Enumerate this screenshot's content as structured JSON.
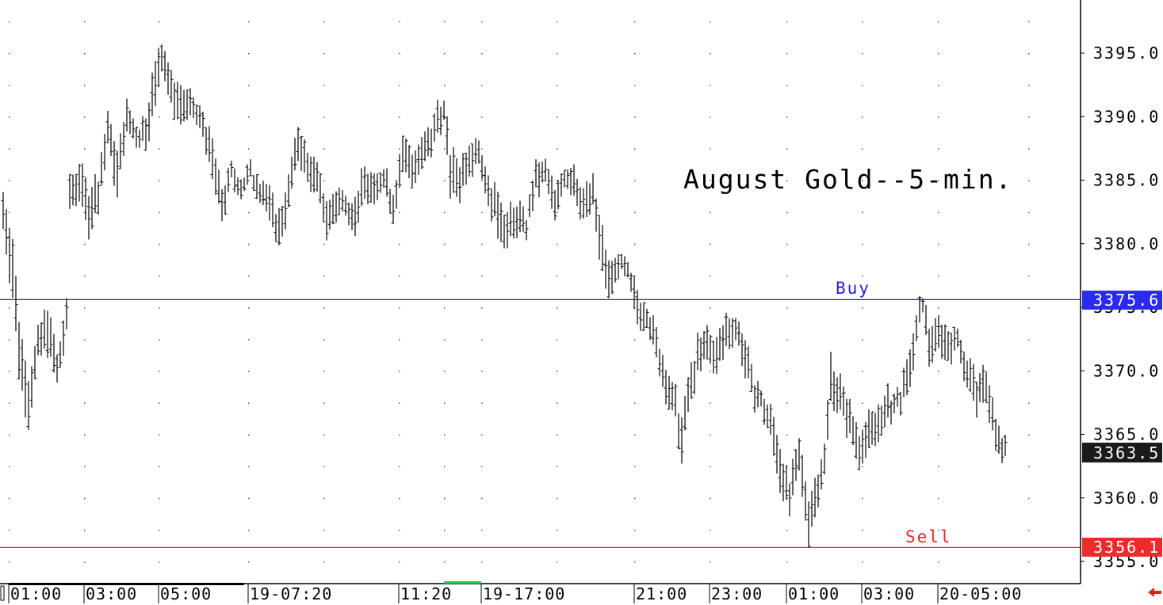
{
  "chart_data": {
    "type": "bar",
    "title": "August Gold--5-min.",
    "xlabel": "",
    "ylabel": "",
    "ylim": [
      3353.5,
      3400.0
    ],
    "y_ticks": [
      "3395.0",
      "3390.0",
      "3385.0",
      "3380.0",
      "3375.0",
      "3370.0",
      "3365.0",
      "3360.0",
      "3355.0"
    ],
    "x_ticks": [
      "01:00",
      "03:00",
      "05:00",
      "19-07:20",
      "11:20",
      "19-17:00",
      "21:00",
      "23:00",
      "01:00",
      "03:00",
      "20-05:00"
    ],
    "grid": true,
    "levels": [
      {
        "name": "Buy",
        "value": 3375.6,
        "label": "3375.6",
        "color": "#1f1fe0"
      },
      {
        "name": "Sell",
        "value": 3356.1,
        "label": "3356.1",
        "color": "#ee2222"
      }
    ],
    "last_price": {
      "value": 3363.5,
      "label": "3363.5"
    },
    "anchors": [
      [
        0,
        3381.5,
        3384
      ],
      [
        3,
        3376,
        3380
      ],
      [
        5,
        3370,
        3374
      ],
      [
        8,
        3366,
        3369
      ],
      [
        11,
        3371,
        3373
      ],
      [
        14,
        3372,
        3375
      ],
      [
        17,
        3369,
        3371
      ],
      [
        20,
        3373,
        3375
      ],
      [
        21,
        3383,
        3385
      ],
      [
        24,
        3384,
        3386
      ],
      [
        27,
        3381,
        3384
      ],
      [
        30,
        3383,
        3385
      ],
      [
        33,
        3388,
        3390
      ],
      [
        36,
        3384,
        3387
      ],
      [
        39,
        3389,
        3391
      ],
      [
        42,
        3388,
        3389
      ],
      [
        45,
        3388,
        3390
      ],
      [
        48,
        3391,
        3394
      ],
      [
        50,
        3394,
        3396
      ],
      [
        53,
        3391,
        3393
      ],
      [
        56,
        3390,
        3392
      ],
      [
        60,
        3390,
        3391
      ],
      [
        63,
        3389,
        3390
      ],
      [
        66,
        3385,
        3388
      ],
      [
        69,
        3382,
        3384
      ],
      [
        72,
        3385,
        3386
      ],
      [
        75,
        3384,
        3385
      ],
      [
        78,
        3385,
        3386
      ],
      [
        81,
        3384,
        3385
      ],
      [
        84,
        3382,
        3384
      ],
      [
        87,
        3380,
        3382
      ],
      [
        90,
        3383,
        3385
      ],
      [
        93,
        3387,
        3389
      ],
      [
        96,
        3385,
        3387
      ],
      [
        99,
        3384,
        3386
      ],
      [
        102,
        3381,
        3383
      ],
      [
        105,
        3382,
        3384
      ],
      [
        108,
        3383,
        3384
      ],
      [
        111,
        3381,
        3383
      ],
      [
        114,
        3384,
        3386
      ],
      [
        117,
        3383,
        3385
      ],
      [
        120,
        3385,
        3386
      ],
      [
        123,
        3382,
        3384
      ],
      [
        126,
        3386,
        3388
      ],
      [
        129,
        3385,
        3387
      ],
      [
        132,
        3386,
        3388
      ],
      [
        135,
        3387,
        3389
      ],
      [
        137,
        3389,
        3391
      ],
      [
        139,
        3390,
        3391
      ],
      [
        141,
        3384,
        3387
      ],
      [
        144,
        3384,
        3386
      ],
      [
        147,
        3386,
        3388
      ],
      [
        150,
        3387,
        3388
      ],
      [
        153,
        3383,
        3385
      ],
      [
        156,
        3381,
        3384
      ],
      [
        159,
        3380,
        3382
      ],
      [
        162,
        3381,
        3383
      ],
      [
        165,
        3381,
        3382
      ],
      [
        168,
        3384,
        3386
      ],
      [
        171,
        3385,
        3386
      ],
      [
        174,
        3382,
        3384
      ],
      [
        177,
        3385,
        3386
      ],
      [
        180,
        3384,
        3386
      ],
      [
        183,
        3382,
        3384
      ],
      [
        186,
        3383,
        3385
      ],
      [
        188,
        3379,
        3382
      ],
      [
        191,
        3376,
        3378
      ],
      [
        194,
        3378,
        3379
      ],
      [
        197,
        3377,
        3378
      ],
      [
        200,
        3374,
        3376
      ],
      [
        203,
        3374,
        3375
      ],
      [
        206,
        3371,
        3373
      ],
      [
        209,
        3368,
        3370
      ],
      [
        212,
        3366,
        3368
      ],
      [
        214,
        3363,
        3366
      ],
      [
        216,
        3367,
        3369
      ],
      [
        219,
        3370,
        3372
      ],
      [
        222,
        3371,
        3373
      ],
      [
        225,
        3370,
        3372
      ],
      [
        228,
        3372,
        3374
      ],
      [
        231,
        3373,
        3374
      ],
      [
        233,
        3371,
        3373
      ],
      [
        236,
        3368,
        3370
      ],
      [
        239,
        3367,
        3368
      ],
      [
        242,
        3365,
        3367
      ],
      [
        245,
        3361,
        3364
      ],
      [
        248,
        3359,
        3361
      ],
      [
        251,
        3362,
        3364
      ],
      [
        254,
        3357,
        3360
      ],
      [
        256,
        3359,
        3361
      ],
      [
        259,
        3362,
        3364
      ],
      [
        261,
        3368,
        3371
      ],
      [
        264,
        3367,
        3369
      ],
      [
        267,
        3365,
        3367
      ],
      [
        270,
        3363,
        3365
      ],
      [
        273,
        3364,
        3366
      ],
      [
        276,
        3365,
        3367
      ],
      [
        279,
        3366,
        3368
      ],
      [
        282,
        3367,
        3368
      ],
      [
        285,
        3368,
        3370
      ],
      [
        288,
        3372,
        3374
      ],
      [
        290,
        3375,
        3376
      ],
      [
        292,
        3371,
        3373
      ],
      [
        295,
        3372,
        3374
      ],
      [
        298,
        3371,
        3373
      ],
      [
        301,
        3372,
        3373
      ],
      [
        304,
        3369,
        3371
      ],
      [
        307,
        3367,
        3369
      ],
      [
        310,
        3368,
        3370
      ],
      [
        313,
        3364,
        3366
      ],
      [
        316,
        3363,
        3364
      ]
    ]
  }
}
